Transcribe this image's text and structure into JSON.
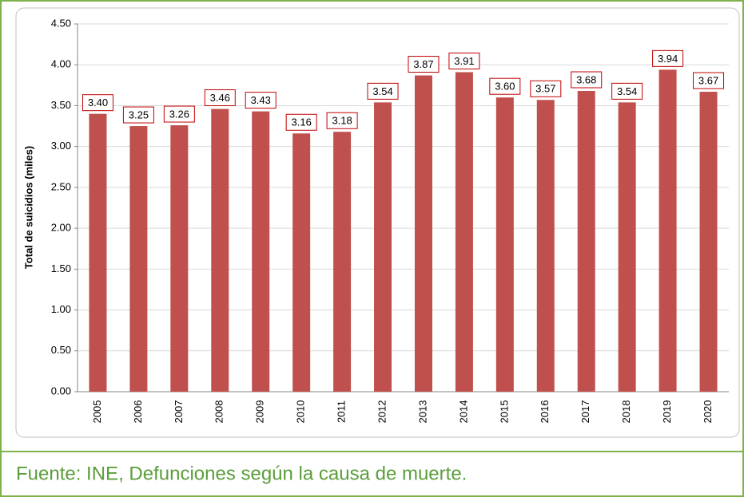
{
  "chart_data": {
    "type": "bar",
    "y_label": "Total de suicidios (miles)",
    "categories": [
      "2005",
      "2006",
      "2007",
      "2008",
      "2009",
      "2010",
      "2011",
      "2012",
      "2013",
      "2014",
      "2015",
      "2016",
      "2017",
      "2018",
      "2019",
      "2020"
    ],
    "values": [
      3.4,
      3.25,
      3.26,
      3.46,
      3.43,
      3.16,
      3.18,
      3.54,
      3.87,
      3.91,
      3.6,
      3.57,
      3.68,
      3.54,
      3.94,
      3.67
    ],
    "value_labels": [
      "3.40",
      "3.25",
      "3.26",
      "3.46",
      "3.43",
      "3.16",
      "3.18",
      "3.54",
      "3.87",
      "3.91",
      "3.60",
      "3.57",
      "3.68",
      "3.54",
      "3.94",
      "3.67"
    ],
    "color": "#c0504d",
    "ylim": [
      0,
      4.5
    ],
    "yticks": [
      {
        "value": 0,
        "label": "0.00"
      },
      {
        "value": 0.5,
        "label": "0.50"
      },
      {
        "value": 1,
        "label": "1.00"
      },
      {
        "value": 1.5,
        "label": "1.50"
      },
      {
        "value": 2,
        "label": "2.00"
      },
      {
        "value": 2.5,
        "label": "2.50"
      },
      {
        "value": 3,
        "label": "3.00"
      },
      {
        "value": 3.5,
        "label": "3.50"
      },
      {
        "value": 4,
        "label": "4.00"
      },
      {
        "value": 4.5,
        "label": "4.50"
      }
    ],
    "grid": true
  },
  "source": "Fuente: INE, Defunciones según la causa de muerte."
}
